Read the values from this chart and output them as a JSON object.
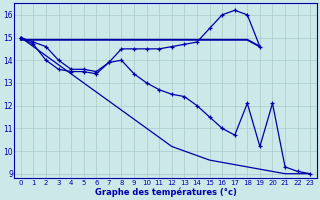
{
  "xlabel": "Graphe des températures (°c)",
  "x_ticks": [
    0,
    1,
    2,
    3,
    4,
    5,
    6,
    7,
    8,
    9,
    10,
    11,
    12,
    13,
    14,
    15,
    16,
    17,
    18,
    19,
    20,
    21,
    22,
    23
  ],
  "ylim": [
    8.8,
    16.5
  ],
  "yticks": [
    9,
    10,
    11,
    12,
    13,
    14,
    15,
    16
  ],
  "bg_color": "#cce8e8",
  "grid_color": "#aacccc",
  "line_color": "#0000aa",
  "series1_x": [
    0,
    1,
    2,
    3,
    4,
    5,
    6,
    7,
    8,
    9,
    10,
    11,
    12,
    13,
    14,
    15,
    16,
    17,
    18,
    19
  ],
  "series1_y": [
    15.0,
    14.8,
    14.6,
    14.0,
    13.6,
    13.6,
    13.5,
    13.9,
    14.5,
    14.5,
    14.5,
    14.5,
    14.6,
    14.7,
    14.8,
    15.4,
    16.0,
    16.2,
    16.0,
    14.6
  ],
  "series2_x": [
    0,
    1,
    2,
    3,
    4,
    5,
    6,
    7,
    8,
    9,
    10,
    11,
    12,
    13,
    14,
    15,
    16,
    17,
    18,
    19
  ],
  "series2_y": [
    14.9,
    14.9,
    14.9,
    14.9,
    14.9,
    14.9,
    14.9,
    14.9,
    14.9,
    14.9,
    14.9,
    14.9,
    14.9,
    14.9,
    14.9,
    14.9,
    14.9,
    14.9,
    14.9,
    14.6
  ],
  "series3_x": [
    0,
    1,
    2,
    3,
    4,
    5,
    6,
    7,
    8,
    9,
    10,
    11,
    12,
    13,
    14,
    15,
    16,
    17,
    18,
    19,
    20,
    21,
    22,
    23
  ],
  "series3_y": [
    15.0,
    14.7,
    14.0,
    13.6,
    13.5,
    13.5,
    13.4,
    13.9,
    14.0,
    13.4,
    13.0,
    12.7,
    12.5,
    12.4,
    12.0,
    11.5,
    11.0,
    10.7,
    12.1,
    10.2,
    12.1,
    9.3,
    9.1,
    9.0
  ],
  "series4_x": [
    0,
    1,
    2,
    3,
    4,
    5,
    6,
    7,
    8,
    9,
    10,
    11,
    12,
    13,
    14,
    15,
    16,
    17,
    18,
    19,
    20,
    21,
    22,
    23
  ],
  "series4_y": [
    15.0,
    14.6,
    14.2,
    13.8,
    13.4,
    13.0,
    12.6,
    12.2,
    11.8,
    11.4,
    11.0,
    10.6,
    10.2,
    10.0,
    9.8,
    9.6,
    9.5,
    9.4,
    9.3,
    9.2,
    9.1,
    9.0,
    9.0,
    9.0
  ]
}
